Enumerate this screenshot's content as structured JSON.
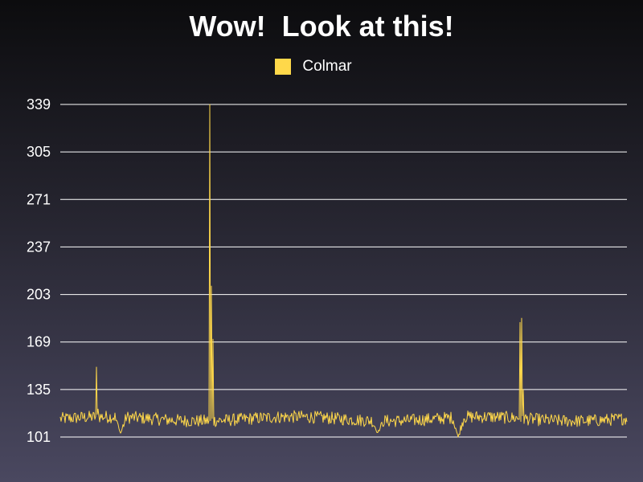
{
  "chart_data": {
    "type": "line",
    "title": "Wow!  Look at this!",
    "xlabel": "",
    "ylabel": "",
    "ylim": [
      101,
      339
    ],
    "yticks": [
      101,
      135,
      169,
      203,
      237,
      271,
      305,
      339
    ],
    "grid": true,
    "legend_position": "top-center",
    "series": [
      {
        "name": "Colmar",
        "color": "#ffd84a",
        "base": 114,
        "spikes": [
          {
            "x": 45,
            "value": 151
          },
          {
            "x": 47,
            "value": 121
          },
          {
            "x": 186,
            "value": 339
          },
          {
            "x": 188,
            "value": 209
          },
          {
            "x": 190,
            "value": 171
          },
          {
            "x": 572,
            "value": 183
          },
          {
            "x": 574,
            "value": 186
          },
          {
            "x": 576,
            "value": 135
          }
        ],
        "dips": [
          {
            "x": 75,
            "value": 104
          },
          {
            "x": 395,
            "value": 104
          },
          {
            "x": 495,
            "value": 101
          }
        ]
      }
    ]
  }
}
